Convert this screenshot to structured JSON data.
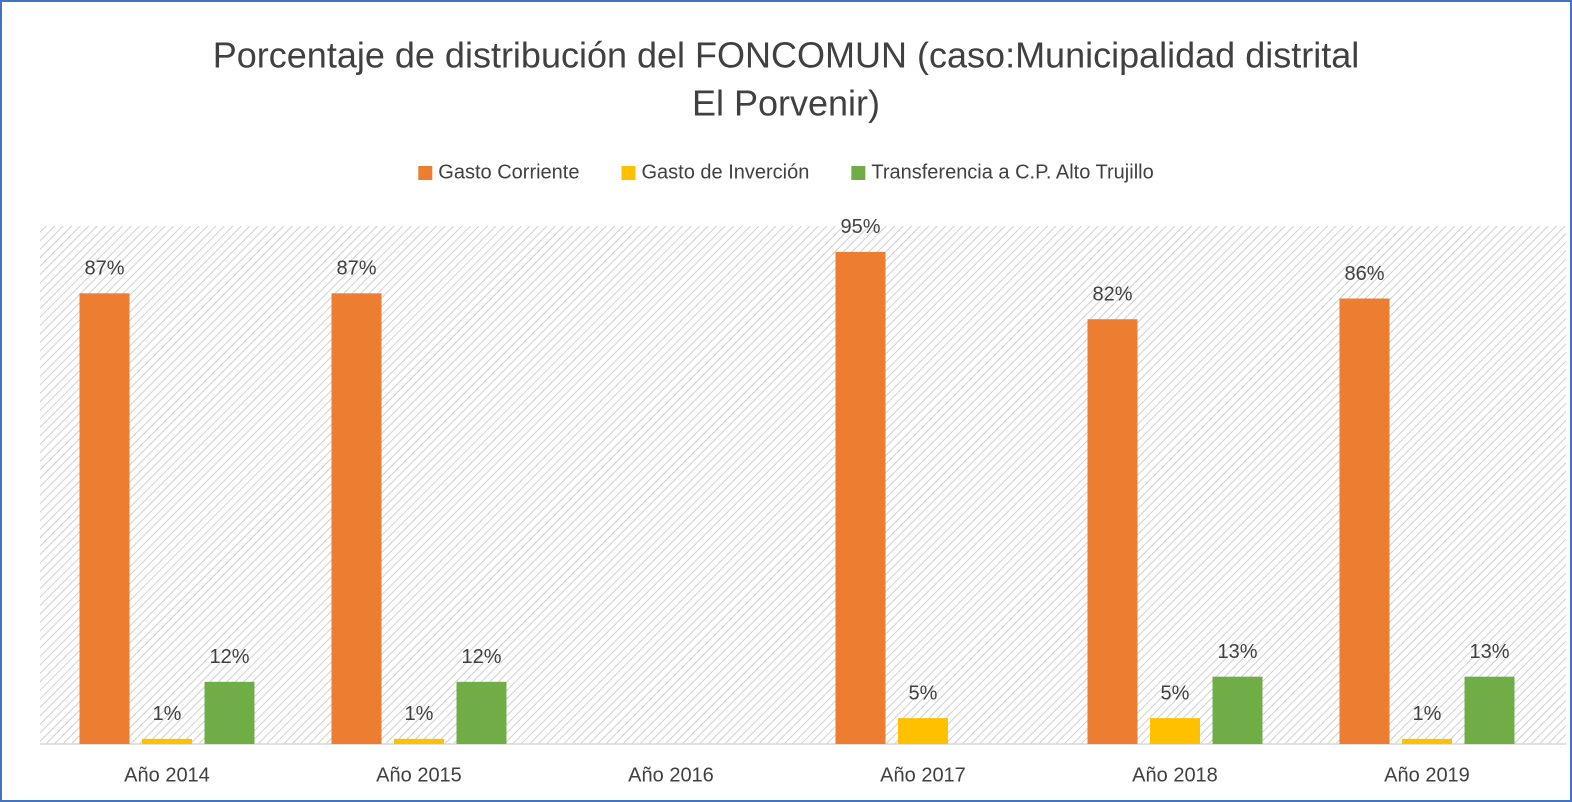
{
  "chart_data": {
    "type": "bar",
    "title": [
      "Porcentaje de distribución del FONCOMUN (caso:Municipalidad distrital",
      "El Porvenir)"
    ],
    "categories": [
      "Año 2014",
      "Año 2015",
      "Año 2016",
      "Año 2017",
      "Año 2018",
      "Año 2019"
    ],
    "series": [
      {
        "name": "Gasto Corriente",
        "color": "#ED7D31",
        "values": [
          87,
          87,
          null,
          95,
          82,
          86
        ],
        "value_labels": [
          "87%",
          "87%",
          null,
          "95%",
          "82%",
          "86%"
        ]
      },
      {
        "name": "Gasto de Inverción",
        "color": "#FFC000",
        "values": [
          1,
          1,
          null,
          5,
          5,
          1
        ],
        "value_labels": [
          "1%",
          "1%",
          null,
          "5%",
          "5%",
          "1%"
        ]
      },
      {
        "name": "Transferencia a C.P. Alto Trujillo",
        "color": "#70AD47",
        "values": [
          12,
          12,
          null,
          null,
          13,
          13
        ],
        "value_labels": [
          "12%",
          "12%",
          null,
          null,
          "13%",
          "13%"
        ]
      }
    ],
    "ylim": [
      0,
      100
    ],
    "legend": "top"
  }
}
